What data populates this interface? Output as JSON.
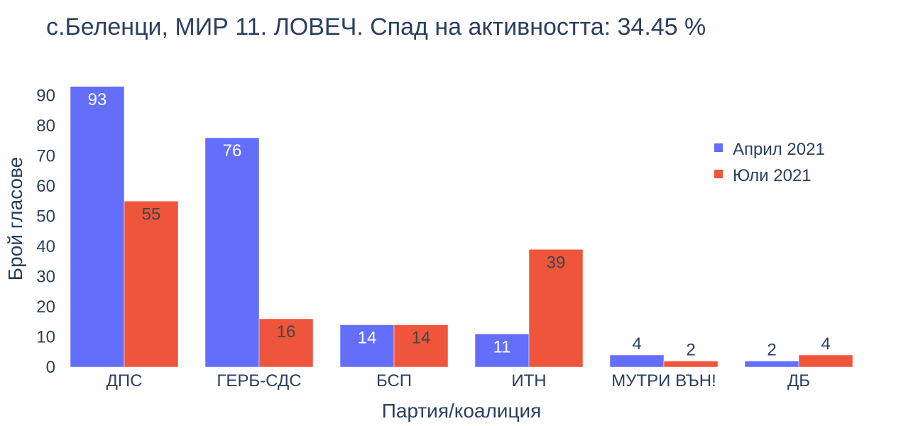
{
  "chart_data": {
    "type": "bar",
    "title": "с.Беленци, МИР 11. ЛОВЕЧ. Спад на активността: 34.45 %",
    "xlabel": "Партия/коалиция",
    "ylabel": "Брой гласове",
    "categories": [
      "ДПС",
      "ГЕРБ-СДС",
      "БСП",
      "ИТН",
      "МУТРИ ВЪН!",
      "ДБ"
    ],
    "series": [
      {
        "name": "Април 2021",
        "values": [
          93,
          76,
          14,
          11,
          4,
          2
        ],
        "color": "#636efa"
      },
      {
        "name": "Юли 2021",
        "values": [
          55,
          16,
          14,
          39,
          2,
          4
        ],
        "color": "#ef553b"
      }
    ],
    "ylim": [
      0,
      95
    ],
    "yticks": [
      0,
      10,
      20,
      30,
      40,
      50,
      60,
      70,
      80,
      90
    ],
    "grid": false,
    "legend": "top-right"
  }
}
